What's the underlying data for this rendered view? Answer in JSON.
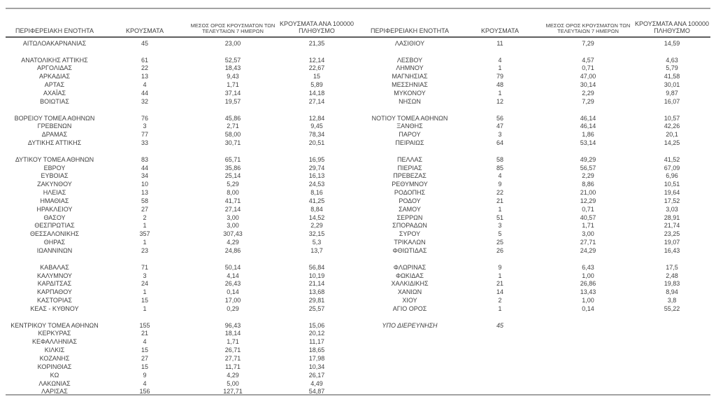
{
  "columns": [
    {
      "label": [
        "ΠΕΡΙΦΕΡΕΙΑΚΗ ΕΝΟΤΗΤΑ"
      ],
      "small": false
    },
    {
      "label": [
        "ΚΡΟΥΣΜΑΤΑ"
      ],
      "small": false
    },
    {
      "label": [
        "ΜΕΣΟΣ ΟΡΟΣ ΚΡΟΥΣΜΑΤΩΝ ΤΩΝ",
        "ΤΕΛΕΥΤΑΙΩΝ 7 ΗΜΕΡΩΝ"
      ],
      "small": true
    },
    {
      "label": [
        "ΚΡΟΥΣΜΑΤΑ ΑΝΑ 100000",
        "ΠΛΗΘΥΣΜΟ"
      ],
      "small": false
    }
  ],
  "tables": [
    {
      "side": "left",
      "sections": [
        {
          "rows": [
            [
              "ΑΙΤΩΛΟΑΚΑΡΝΑΝΙΑΣ",
              "45",
              "23,00",
              "21,35"
            ]
          ]
        },
        {
          "rows": [
            [
              "ΑΝΑΤΟΛΙΚΗΣ ΑΤΤΙΚΗΣ",
              "61",
              "52,57",
              "12,14"
            ],
            [
              "ΑΡΓΟΛΙΔΑΣ",
              "22",
              "18,43",
              "22,67"
            ],
            [
              "ΑΡΚΑΔΙΑΣ",
              "13",
              "9,43",
              "15"
            ],
            [
              "ΑΡΤΑΣ",
              "4",
              "1,71",
              "5,89"
            ],
            [
              "ΑΧΑΪΑΣ",
              "44",
              "37,14",
              "14,18"
            ],
            [
              "ΒΟΙΩΤΙΑΣ",
              "32",
              "19,57",
              "27,14"
            ]
          ]
        },
        {
          "rows": [
            [
              "ΒΟΡΕΙΟΥ ΤΟΜΕΑ ΑΘΗΝΩΝ",
              "76",
              "45,86",
              "12,84"
            ],
            [
              "ΓΡΕΒΕΝΩΝ",
              "3",
              "2,71",
              "9,45"
            ],
            [
              "ΔΡΑΜΑΣ",
              "77",
              "58,00",
              "78,34"
            ],
            [
              "ΔΥΤΙΚΗΣ ΑΤΤΙΚΗΣ",
              "33",
              "30,71",
              "20,51"
            ]
          ]
        },
        {
          "rows": [
            [
              "ΔΥΤΙΚΟΥ ΤΟΜΕΑ ΑΘΗΝΩΝ",
              "83",
              "65,71",
              "16,95"
            ],
            [
              "ΕΒΡΟΥ",
              "44",
              "35,86",
              "29,74"
            ],
            [
              "ΕΥΒΟΙΑΣ",
              "34",
              "25,14",
              "16,13"
            ],
            [
              "ΖΑΚΥΝΘΟΥ",
              "10",
              "5,29",
              "24,53"
            ],
            [
              "ΗΛΕΙΑΣ",
              "13",
              "8,00",
              "8,16"
            ],
            [
              "ΗΜΑΘΙΑΣ",
              "58",
              "41,71",
              "41,25"
            ],
            [
              "ΗΡΑΚΛΕΙΟΥ",
              "27",
              "27,14",
              "8,84"
            ],
            [
              "ΘΑΣΟΥ",
              "2",
              "3,00",
              "14,52"
            ],
            [
              "ΘΕΣΠΡΩΤΙΑΣ",
              "1",
              "3,00",
              "2,29"
            ],
            [
              "ΘΕΣΣΑΛΟΝΙΚΗΣ",
              "357",
              "307,43",
              "32,15"
            ],
            [
              "ΘΗΡΑΣ",
              "1",
              "4,29",
              "5,3"
            ],
            [
              "ΙΩΑΝΝΙΝΩΝ",
              "23",
              "24,86",
              "13,7"
            ]
          ]
        },
        {
          "rows": [
            [
              "ΚΑΒΑΛΑΣ",
              "71",
              "50,14",
              "56,84"
            ],
            [
              "ΚΑΛΥΜΝΟΥ",
              "3",
              "4,14",
              "10,19"
            ],
            [
              "ΚΑΡΔΙΤΣΑΣ",
              "24",
              "26,43",
              "21,14"
            ],
            [
              "ΚΑΡΠΑΘΟΥ",
              "1",
              "0,14",
              "13,68"
            ],
            [
              "ΚΑΣΤΟΡΙΑΣ",
              "15",
              "17,00",
              "29,81"
            ],
            [
              "ΚΕΑΣ - ΚΥΘΝΟΥ",
              "1",
              "0,29",
              "25,57"
            ]
          ]
        },
        {
          "rows": [
            [
              "ΚΕΝΤΡΙΚΟΥ ΤΟΜΕΑ ΑΘΗΝΩΝ",
              "155",
              "96,43",
              "15,06"
            ],
            [
              "ΚΕΡΚΥΡΑΣ",
              "21",
              "18,14",
              "20,12"
            ],
            [
              "ΚΕΦΑΛΛΗΝΙΑΣ",
              "4",
              "1,71",
              "11,17"
            ],
            [
              "ΚΙΛΚΙΣ",
              "15",
              "26,71",
              "18,65"
            ],
            [
              "ΚΟΖΑΝΗΣ",
              "27",
              "27,71",
              "17,98"
            ],
            [
              "ΚΟΡΙΝΘΙΑΣ",
              "15",
              "11,71",
              "10,34"
            ],
            [
              "ΚΩ",
              "9",
              "4,29",
              "26,17"
            ],
            [
              "ΛΑΚΩΝΙΑΣ",
              "4",
              "5,00",
              "4,49"
            ],
            [
              "ΛΑΡΙΣΑΣ",
              "156",
              "127,71",
              "54,87"
            ]
          ]
        }
      ]
    },
    {
      "side": "right",
      "sections": [
        {
          "rows": [
            [
              "ΛΑΣΙΘΙΟΥ",
              "11",
              "7,29",
              "14,59"
            ]
          ]
        },
        {
          "rows": [
            [
              "ΛΕΣΒΟΥ",
              "4",
              "4,57",
              "4,63"
            ],
            [
              "ΛΗΜΝΟΥ",
              "1",
              "0,71",
              "5,79"
            ],
            [
              "ΜΑΓΝΗΣΙΑΣ",
              "79",
              "47,00",
              "41,58"
            ],
            [
              "ΜΕΣΣΗΝΙΑΣ",
              "48",
              "30,14",
              "30,01"
            ],
            [
              "ΜΥΚΟΝΟΥ",
              "1",
              "2,29",
              "9,87"
            ],
            [
              "ΝΗΣΩΝ",
              "12",
              "7,29",
              "16,07"
            ]
          ]
        },
        {
          "rows": [
            [
              "ΝΟΤΙΟΥ ΤΟΜΕΑ ΑΘΗΝΩΝ",
              "56",
              "46,14",
              "10,57"
            ],
            [
              "ΞΑΝΘΗΣ",
              "47",
              "46,14",
              "42,26"
            ],
            [
              "ΠΑΡΟΥ",
              "3",
              "1,86",
              "20,1"
            ],
            [
              "ΠΕΙΡΑΙΩΣ",
              "64",
              "53,14",
              "14,25"
            ]
          ]
        },
        {
          "rows": [
            [
              "ΠΕΛΛΑΣ",
              "58",
              "49,29",
              "41,52"
            ],
            [
              "ΠΙΕΡΙΑΣ",
              "85",
              "56,57",
              "67,09"
            ],
            [
              "ΠΡΕΒΕΖΑΣ",
              "4",
              "2,29",
              "6,96"
            ],
            [
              "ΡΕΘΥΜΝΟΥ",
              "9",
              "8,86",
              "10,51"
            ],
            [
              "ΡΟΔΟΠΗΣ",
              "22",
              "21,00",
              "19,64"
            ],
            [
              "ΡΟΔΟΥ",
              "21",
              "12,29",
              "17,52"
            ],
            [
              "ΣΑΜΟΥ",
              "1",
              "0,71",
              "3,03"
            ],
            [
              "ΣΕΡΡΩΝ",
              "51",
              "40,57",
              "28,91"
            ],
            [
              "ΣΠΟΡΑΔΩΝ",
              "3",
              "1,71",
              "21,74"
            ],
            [
              "ΣΥΡΟΥ",
              "5",
              "3,00",
              "23,25"
            ],
            [
              "ΤΡΙΚΑΛΩΝ",
              "25",
              "27,71",
              "19,07"
            ],
            [
              "ΦΘΙΩΤΙΔΑΣ",
              "26",
              "24,29",
              "16,43"
            ]
          ]
        },
        {
          "rows": [
            [
              "ΦΛΩΡΙΝΑΣ",
              "9",
              "6,43",
              "17,5"
            ],
            [
              "ΦΩΚΙΔΑΣ",
              "1",
              "1,00",
              "2,48"
            ],
            [
              "ΧΑΛΚΙΔΙΚΗΣ",
              "21",
              "26,86",
              "19,83"
            ],
            [
              "ΧΑΝΙΩΝ",
              "14",
              "13,43",
              "8,94"
            ],
            [
              "ΧΙΟΥ",
              "2",
              "1,00",
              "3,8"
            ],
            [
              "ΑΓΙΟ ΟΡΟΣ",
              "1",
              "0,14",
              "55,22"
            ]
          ]
        },
        {
          "italic": true,
          "rows": [
            [
              "ΥΠΟ ΔΙΕΡΕΥΝΗΣΗ",
              "45",
              "",
              ""
            ]
          ]
        }
      ]
    }
  ],
  "styles": {
    "text_color": "#3f3f3f",
    "rule_color": "#a3a3a3",
    "header_rule_color": "#5f5f5f",
    "background": "#ffffff"
  }
}
